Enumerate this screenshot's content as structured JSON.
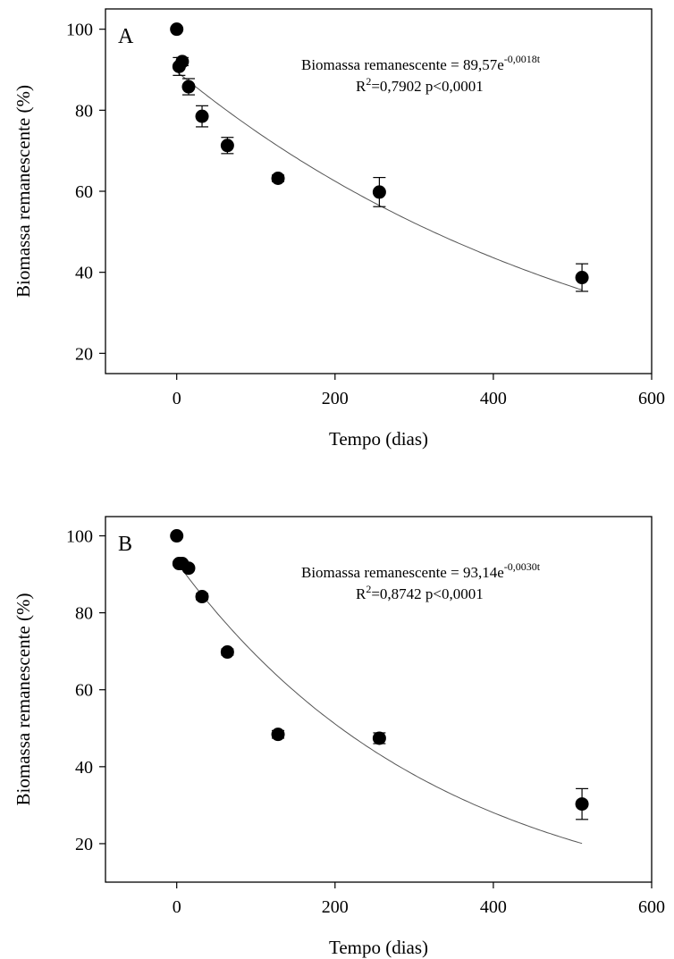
{
  "chart_data": [
    {
      "type": "scatter",
      "panel_label": "A",
      "xlabel": "Tempo (dias)",
      "ylabel": "Biomassa remanescente (%)",
      "xlim": [
        -90,
        600
      ],
      "ylim": [
        15,
        105
      ],
      "xticks": [
        0,
        200,
        400,
        600
      ],
      "yticks": [
        20,
        40,
        60,
        80,
        100
      ],
      "x": [
        0,
        3,
        7,
        15,
        32,
        64,
        128,
        256,
        512
      ],
      "y": [
        100,
        90.8,
        92,
        85.8,
        78.5,
        71.3,
        63.2,
        59.8,
        38.7
      ],
      "error": [
        0,
        2.2,
        1.0,
        2.0,
        2.6,
        2.0,
        0.8,
        3.6,
        3.4
      ],
      "fit": {
        "a": 89.57,
        "k": -0.0018,
        "t_range": [
          0,
          512
        ]
      },
      "equation": {
        "base": "Biomassa remanescente = 89,57e",
        "exponent": "-0,0018t"
      },
      "stats": {
        "r_prefix": "R",
        "r_sup": "2",
        "r_rest": "=0,7902 p<0,0001"
      },
      "grid": false,
      "legend": "none"
    },
    {
      "type": "scatter",
      "panel_label": "B",
      "xlabel": "Tempo (dias)",
      "ylabel": "Biomassa remanescente (%)",
      "xlim": [
        -90,
        600
      ],
      "ylim": [
        10,
        105
      ],
      "xticks": [
        0,
        200,
        400,
        600
      ],
      "yticks": [
        20,
        40,
        60,
        80,
        100
      ],
      "x": [
        0,
        3,
        7,
        15,
        32,
        64,
        128,
        256,
        512
      ],
      "y": [
        100,
        92.8,
        92.8,
        91.6,
        84.2,
        69.8,
        48.4,
        47.4,
        30.3
      ],
      "error": [
        0,
        0.5,
        0.5,
        0.5,
        0.8,
        0.8,
        1.0,
        1.4,
        4.0
      ],
      "fit": {
        "a": 93.14,
        "k": -0.003,
        "t_range": [
          0,
          512
        ]
      },
      "equation": {
        "base": "Biomassa remanescente = 93,14e",
        "exponent": "-0,0030t"
      },
      "stats": {
        "r_prefix": "R",
        "r_sup": "2",
        "r_rest": "=0,8742 p<0,0001"
      },
      "grid": false,
      "legend": "none"
    }
  ]
}
